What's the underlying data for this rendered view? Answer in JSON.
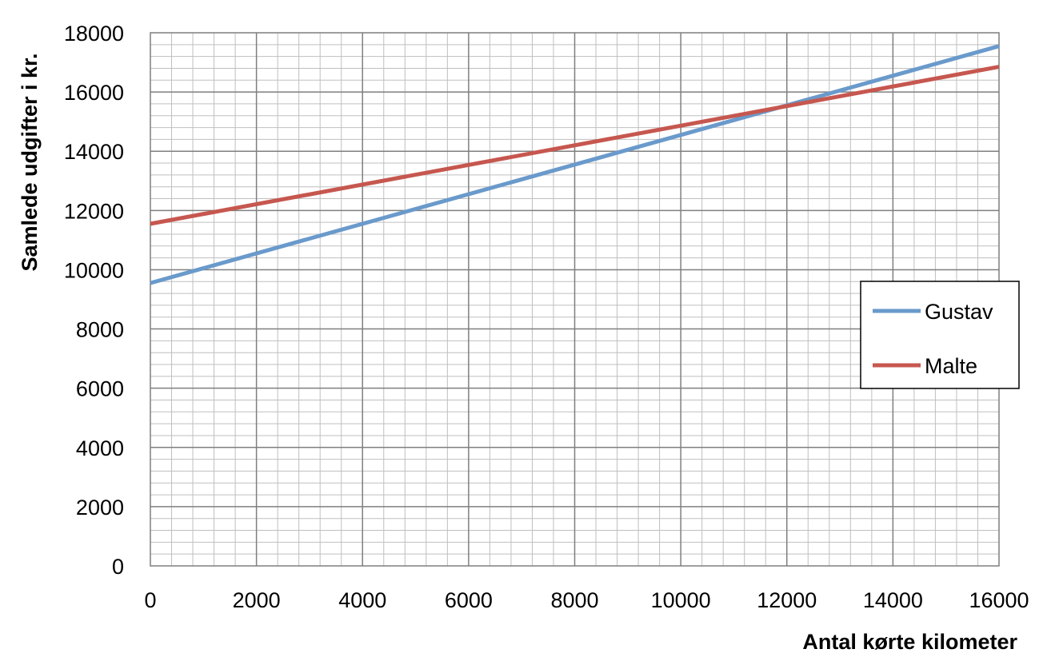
{
  "chart_data": {
    "type": "line",
    "title": "",
    "xlabel": "Antal kørte kilometer",
    "ylabel": "Samlede udgifter i kr.",
    "xlim": [
      0,
      16000
    ],
    "ylim": [
      0,
      18000
    ],
    "x_ticks": [
      0,
      2000,
      4000,
      6000,
      8000,
      10000,
      12000,
      14000,
      16000
    ],
    "y_ticks": [
      0,
      2000,
      4000,
      6000,
      8000,
      10000,
      12000,
      14000,
      16000,
      18000
    ],
    "x_minor_step": 400,
    "y_minor_step": 400,
    "grid": true,
    "legend_position": "right",
    "series": [
      {
        "name": "Gustav",
        "color": "#6a9acb",
        "x": [
          0,
          16000
        ],
        "values": [
          9550,
          17550
        ]
      },
      {
        "name": "Malte",
        "color": "#c6574f",
        "x": [
          0,
          16000
        ],
        "values": [
          11550,
          16850
        ]
      }
    ]
  }
}
